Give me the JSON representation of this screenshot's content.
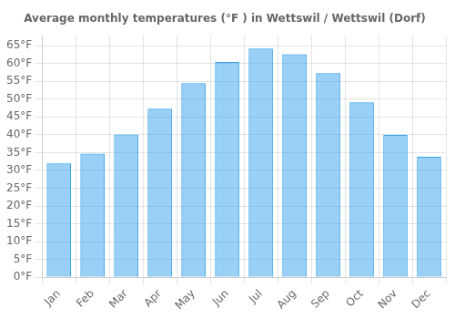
{
  "chart_data": {
    "type": "bar",
    "title": "Average monthly temperatures (°F ) in Wettswil / Wettswil (Dorf)",
    "categories": [
      "Jan",
      "Feb",
      "Mar",
      "Apr",
      "May",
      "Jun",
      "Jul",
      "Aug",
      "Sep",
      "Oct",
      "Nov",
      "Dec"
    ],
    "values": [
      32.0,
      34.7,
      40.1,
      47.3,
      54.5,
      60.4,
      64.2,
      62.6,
      57.3,
      49.1,
      40.0,
      33.8
    ],
    "ylim": [
      0,
      68
    ],
    "yticks": [
      {
        "value": 0,
        "label": "0°F"
      },
      {
        "value": 5,
        "label": "5°F"
      },
      {
        "value": 10,
        "label": "10°F"
      },
      {
        "value": 15,
        "label": "15°F"
      },
      {
        "value": 20,
        "label": "20°F"
      },
      {
        "value": 25,
        "label": "25°F"
      },
      {
        "value": 30,
        "label": "30°F"
      },
      {
        "value": 35,
        "label": "35°F"
      },
      {
        "value": 40,
        "label": "40°F"
      },
      {
        "value": 45,
        "label": "45°F"
      },
      {
        "value": 50,
        "label": "50°F"
      },
      {
        "value": 55,
        "label": "55°F"
      },
      {
        "value": 60,
        "label": "60°F"
      },
      {
        "value": 65,
        "label": "65°F"
      }
    ],
    "grid": true
  }
}
